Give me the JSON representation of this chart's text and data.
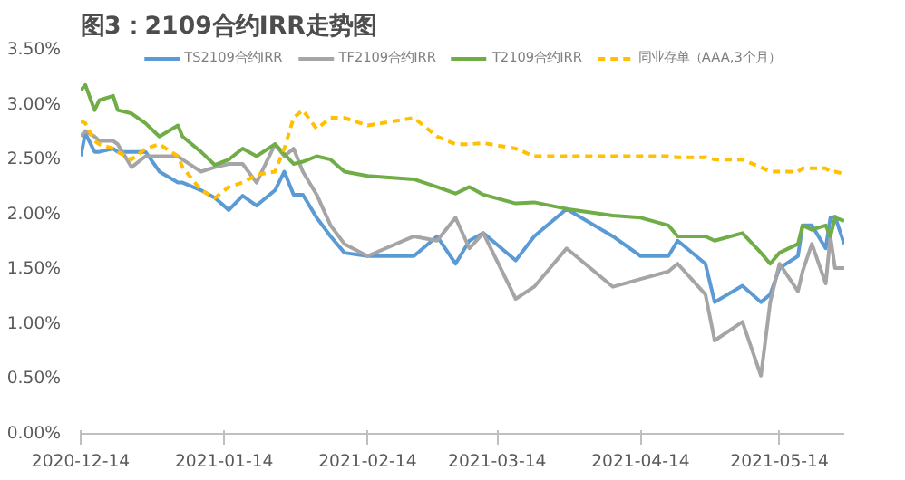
{
  "chart_data": {
    "type": "line",
    "title": "图3：2109合约IRR走势图",
    "x": [
      "2020-12-14",
      "2020-12-15",
      "2020-12-17",
      "2020-12-18",
      "2020-12-21",
      "2020-12-22",
      "2020-12-25",
      "2020-12-28",
      "2020-12-31",
      "2021-01-04",
      "2021-01-05",
      "2021-01-09",
      "2021-01-12",
      "2021-01-15",
      "2021-01-18",
      "2021-01-21",
      "2021-01-25",
      "2021-01-27",
      "2021-01-29",
      "2021-01-31",
      "2021-02-03",
      "2021-02-06",
      "2021-02-09",
      "2021-02-14",
      "2021-02-24",
      "2021-03-01",
      "2021-03-05",
      "2021-03-08",
      "2021-03-11",
      "2021-03-18",
      "2021-03-22",
      "2021-03-29",
      "2021-04-08",
      "2021-04-14",
      "2021-04-20",
      "2021-04-22",
      "2021-04-28",
      "2021-04-30",
      "2021-05-06",
      "2021-05-10",
      "2021-05-12",
      "2021-05-14",
      "2021-05-18",
      "2021-05-19",
      "2021-05-21",
      "2021-05-24",
      "2021-05-25",
      "2021-05-26",
      "2021-05-28"
    ],
    "series": [
      {
        "name": "TS2109合约IRR",
        "color": "#5b9bd5",
        "values": [
          2.53,
          2.74,
          2.57,
          2.57,
          2.6,
          2.57,
          2.57,
          2.57,
          2.39,
          2.29,
          2.29,
          2.22,
          2.15,
          2.04,
          2.17,
          2.08,
          2.22,
          2.39,
          2.18,
          2.18,
          1.97,
          1.8,
          1.65,
          1.62,
          1.62,
          1.8,
          1.55,
          1.76,
          1.83,
          1.58,
          1.8,
          2.05,
          1.8,
          1.62,
          1.62,
          1.76,
          1.55,
          1.2,
          1.35,
          1.2,
          1.27,
          1.51,
          1.62,
          1.9,
          1.9,
          1.69,
          1.97,
          1.98,
          1.73
        ]
      },
      {
        "name": "TF2109合约IRR",
        "color": "#a5a5a5",
        "values": [
          2.71,
          2.76,
          2.71,
          2.67,
          2.67,
          2.64,
          2.43,
          2.53,
          2.53,
          2.53,
          2.5,
          2.39,
          2.43,
          2.46,
          2.46,
          2.29,
          2.64,
          2.53,
          2.6,
          2.39,
          2.18,
          1.9,
          1.73,
          1.62,
          1.8,
          1.76,
          1.97,
          1.69,
          1.83,
          1.23,
          1.34,
          1.69,
          1.34,
          1.41,
          1.48,
          1.55,
          1.27,
          0.85,
          1.02,
          0.53,
          1.2,
          1.55,
          1.3,
          1.48,
          1.73,
          1.37,
          1.8,
          1.51,
          1.51
        ]
      },
      {
        "name": "T2109合约IRR",
        "color": "#70ad47",
        "values": [
          3.13,
          3.18,
          2.95,
          3.04,
          3.08,
          2.95,
          2.92,
          2.83,
          2.71,
          2.81,
          2.71,
          2.57,
          2.45,
          2.5,
          2.6,
          2.53,
          2.64,
          2.55,
          2.46,
          2.48,
          2.53,
          2.5,
          2.39,
          2.35,
          2.32,
          2.25,
          2.19,
          2.25,
          2.18,
          2.1,
          2.11,
          2.05,
          1.99,
          1.97,
          1.9,
          1.8,
          1.8,
          1.76,
          1.83,
          1.65,
          1.55,
          1.65,
          1.73,
          1.9,
          1.86,
          1.9,
          1.8,
          1.97,
          1.94
        ]
      },
      {
        "name": "同业存单（AAA,3个月）",
        "color": "#ffc000",
        "line_style": "dashed",
        "values": [
          2.85,
          2.83,
          2.67,
          2.64,
          2.6,
          2.57,
          2.5,
          2.6,
          2.64,
          2.53,
          2.43,
          2.22,
          2.15,
          2.25,
          2.29,
          2.36,
          2.39,
          2.6,
          2.88,
          2.95,
          2.78,
          2.88,
          2.88,
          2.81,
          2.88,
          2.71,
          2.64,
          2.64,
          2.65,
          2.6,
          2.53,
          2.53,
          2.53,
          2.53,
          2.53,
          2.52,
          2.52,
          2.5,
          2.5,
          2.43,
          2.39,
          2.39,
          2.39,
          2.42,
          2.42,
          2.42,
          2.39,
          2.39,
          2.37
        ]
      }
    ],
    "xlim": [
      "2020-12-14",
      "2021-05-28"
    ],
    "xticks": [
      "2020-12-14",
      "2021-01-14",
      "2021-02-14",
      "2021-03-14",
      "2021-04-14",
      "2021-05-14"
    ],
    "ylim": [
      0,
      3.5
    ],
    "yticks": [
      {
        "value": 0,
        "label": "0.00%"
      },
      {
        "value": 0.5,
        "label": "0.50%"
      },
      {
        "value": 1,
        "label": "1.00%"
      },
      {
        "value": 1.5,
        "label": "1.50%"
      },
      {
        "value": 2,
        "label": "2.00%"
      },
      {
        "value": 2.5,
        "label": "2.50%"
      },
      {
        "value": 3,
        "label": "3.00%"
      },
      {
        "value": 3.5,
        "label": "3.50%"
      }
    ],
    "grid": false,
    "legend": "top",
    "line_style": "solid",
    "marker": "none"
  }
}
